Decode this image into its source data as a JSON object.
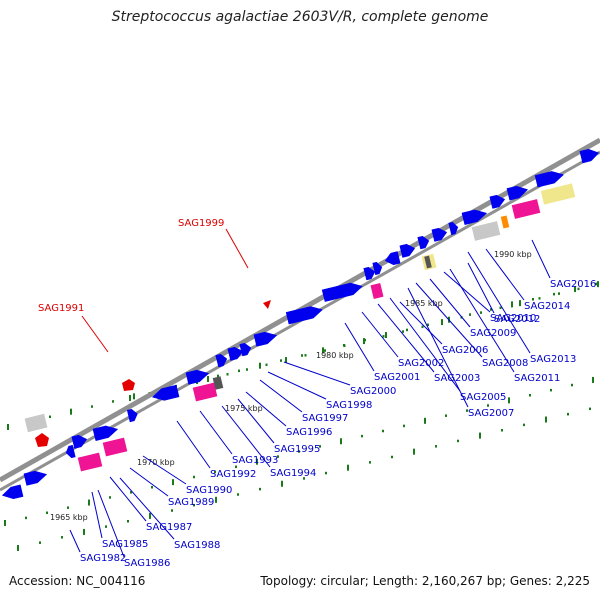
{
  "title": "Streptococcus agalactiae 2603V/R, complete genome",
  "footer": {
    "accession": "Accession: NC_004116",
    "summary": "Topology: circular; Length: 2,160,267 bp; Genes: 2,225"
  },
  "colors": {
    "cds": "#0000ee",
    "rna_magenta": "#ee1493",
    "rna_red": "#e40000",
    "pseudo_gray": "#c8c8c8",
    "khaki": "#f0e68c",
    "orange": "#ff8c00",
    "backbone": "#909090",
    "tick": "#1a7a1a",
    "label_link": "#0000cc",
    "red_label": "#dd0000"
  },
  "kbp_labels": [
    "1965 kbp",
    "1970 kbp",
    "1975 kbp",
    "1980 kbp",
    "1985 kbp",
    "1990 kbp"
  ],
  "gene_labels": [
    {
      "text": "SAG1982",
      "color": "blue"
    },
    {
      "text": "SAG1985",
      "color": "blue"
    },
    {
      "text": "SAG1986",
      "color": "blue"
    },
    {
      "text": "SAG1987",
      "color": "blue"
    },
    {
      "text": "SAG1988",
      "color": "blue"
    },
    {
      "text": "SAG1989",
      "color": "blue"
    },
    {
      "text": "SAG1990",
      "color": "blue"
    },
    {
      "text": "SAG1992",
      "color": "blue"
    },
    {
      "text": "SAG1993",
      "color": "blue"
    },
    {
      "text": "SAG1994",
      "color": "blue"
    },
    {
      "text": "SAG1995",
      "color": "blue"
    },
    {
      "text": "SAG1996",
      "color": "blue"
    },
    {
      "text": "SAG1997",
      "color": "blue"
    },
    {
      "text": "SAG1998",
      "color": "blue"
    },
    {
      "text": "SAG2000",
      "color": "blue"
    },
    {
      "text": "SAG2001",
      "color": "blue"
    },
    {
      "text": "SAG2002",
      "color": "blue"
    },
    {
      "text": "SAG2003",
      "color": "blue"
    },
    {
      "text": "SAG2005",
      "color": "blue"
    },
    {
      "text": "SAG2006",
      "color": "blue"
    },
    {
      "text": "SAG2007",
      "color": "blue"
    },
    {
      "text": "SAG2008",
      "color": "blue"
    },
    {
      "text": "SAG2009",
      "color": "blue"
    },
    {
      "text": "SAG2010",
      "color": "blue"
    },
    {
      "text": "SAG2011",
      "color": "blue"
    },
    {
      "text": "SAG2012",
      "color": "blue"
    },
    {
      "text": "SAG2013",
      "color": "blue"
    },
    {
      "text": "SAG2014",
      "color": "blue"
    },
    {
      "text": "SAG2016",
      "color": "blue"
    },
    {
      "text": "SAG1991",
      "color": "red"
    },
    {
      "text": "SAG1999",
      "color": "red"
    }
  ]
}
